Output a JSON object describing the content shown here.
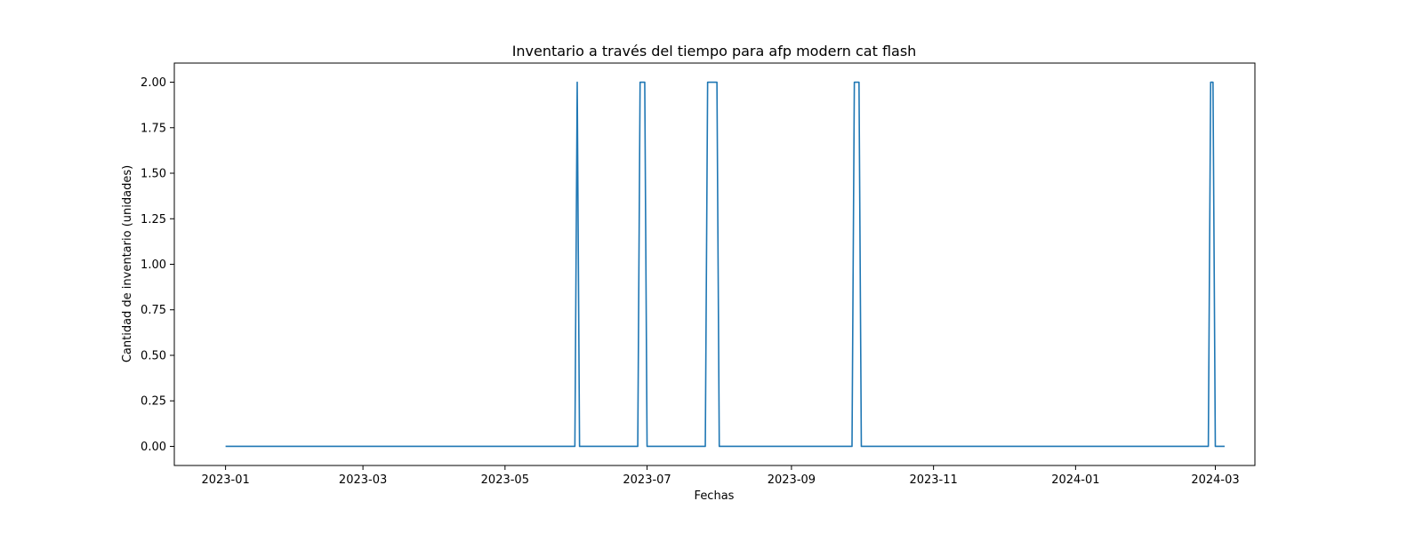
{
  "chart_data": {
    "type": "line",
    "title": "Inventario a través del tiempo para afp modern cat flash",
    "xlabel": "Fechas",
    "ylabel": "Cantidad de inventario (unidades)",
    "x_axis_type": "date",
    "ylim": [
      -0.105,
      2.105
    ],
    "xlim": [
      "2022-12-10",
      "2024-03-18"
    ],
    "grid": false,
    "legend": "none",
    "line_color": "#1f77b4",
    "x_ticks": [
      "2023-01",
      "2023-03",
      "2023-05",
      "2023-07",
      "2023-09",
      "2023-11",
      "2024-01",
      "2024-03"
    ],
    "y_ticks": [
      "0.00",
      "0.25",
      "0.50",
      "0.75",
      "1.00",
      "1.25",
      "1.50",
      "1.75",
      "2.00"
    ],
    "series": [
      {
        "points": [
          {
            "x": "2023-01-01",
            "y": 0
          },
          {
            "x": "2023-05-31",
            "y": 0
          },
          {
            "x": "2023-06-01",
            "y": 2
          },
          {
            "x": "2023-06-02",
            "y": 0
          },
          {
            "x": "2023-06-27",
            "y": 0
          },
          {
            "x": "2023-06-28",
            "y": 2
          },
          {
            "x": "2023-06-30",
            "y": 2
          },
          {
            "x": "2023-07-01",
            "y": 0
          },
          {
            "x": "2023-07-26",
            "y": 0
          },
          {
            "x": "2023-07-27",
            "y": 2
          },
          {
            "x": "2023-07-31",
            "y": 2
          },
          {
            "x": "2023-08-01",
            "y": 0
          },
          {
            "x": "2023-09-27",
            "y": 0
          },
          {
            "x": "2023-09-28",
            "y": 2
          },
          {
            "x": "2023-09-30",
            "y": 2
          },
          {
            "x": "2023-10-01",
            "y": 0
          },
          {
            "x": "2024-02-27",
            "y": 0
          },
          {
            "x": "2024-02-28",
            "y": 2
          },
          {
            "x": "2024-02-29",
            "y": 2
          },
          {
            "x": "2024-03-01",
            "y": 0
          },
          {
            "x": "2024-03-05",
            "y": 0
          }
        ]
      }
    ]
  }
}
